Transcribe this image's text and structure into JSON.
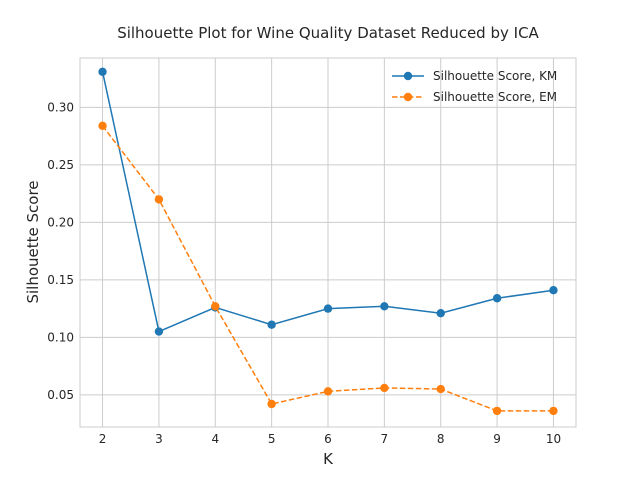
{
  "chart_data": {
    "type": "line",
    "title": "Silhouette Plot for Wine Quality Dataset Reduced by ICA",
    "xlabel": "K",
    "ylabel": "Silhouette Score",
    "x": [
      2,
      3,
      4,
      5,
      6,
      7,
      8,
      9,
      10
    ],
    "xlim": [
      1.6,
      10.4
    ],
    "ylim": [
      0.022,
      0.343
    ],
    "x_ticks": [
      "2",
      "3",
      "4",
      "5",
      "6",
      "7",
      "8",
      "9",
      "10"
    ],
    "y_ticks": [
      "0.05",
      "0.10",
      "0.15",
      "0.20",
      "0.25",
      "0.30"
    ],
    "grid": true,
    "legend_position": "top-right",
    "series": [
      {
        "name": "Silhouette Score, KM",
        "color": "#1f77b4",
        "line_style": "solid",
        "marker": "circle",
        "values": [
          0.331,
          0.105,
          0.126,
          0.111,
          0.125,
          0.127,
          0.121,
          0.134,
          0.141
        ]
      },
      {
        "name": "Silhouette Score, EM",
        "color": "#ff7f0e",
        "line_style": "dashed",
        "marker": "circle",
        "values": [
          0.284,
          0.22,
          0.127,
          0.042,
          0.053,
          0.056,
          0.055,
          0.036,
          0.036
        ]
      }
    ]
  }
}
